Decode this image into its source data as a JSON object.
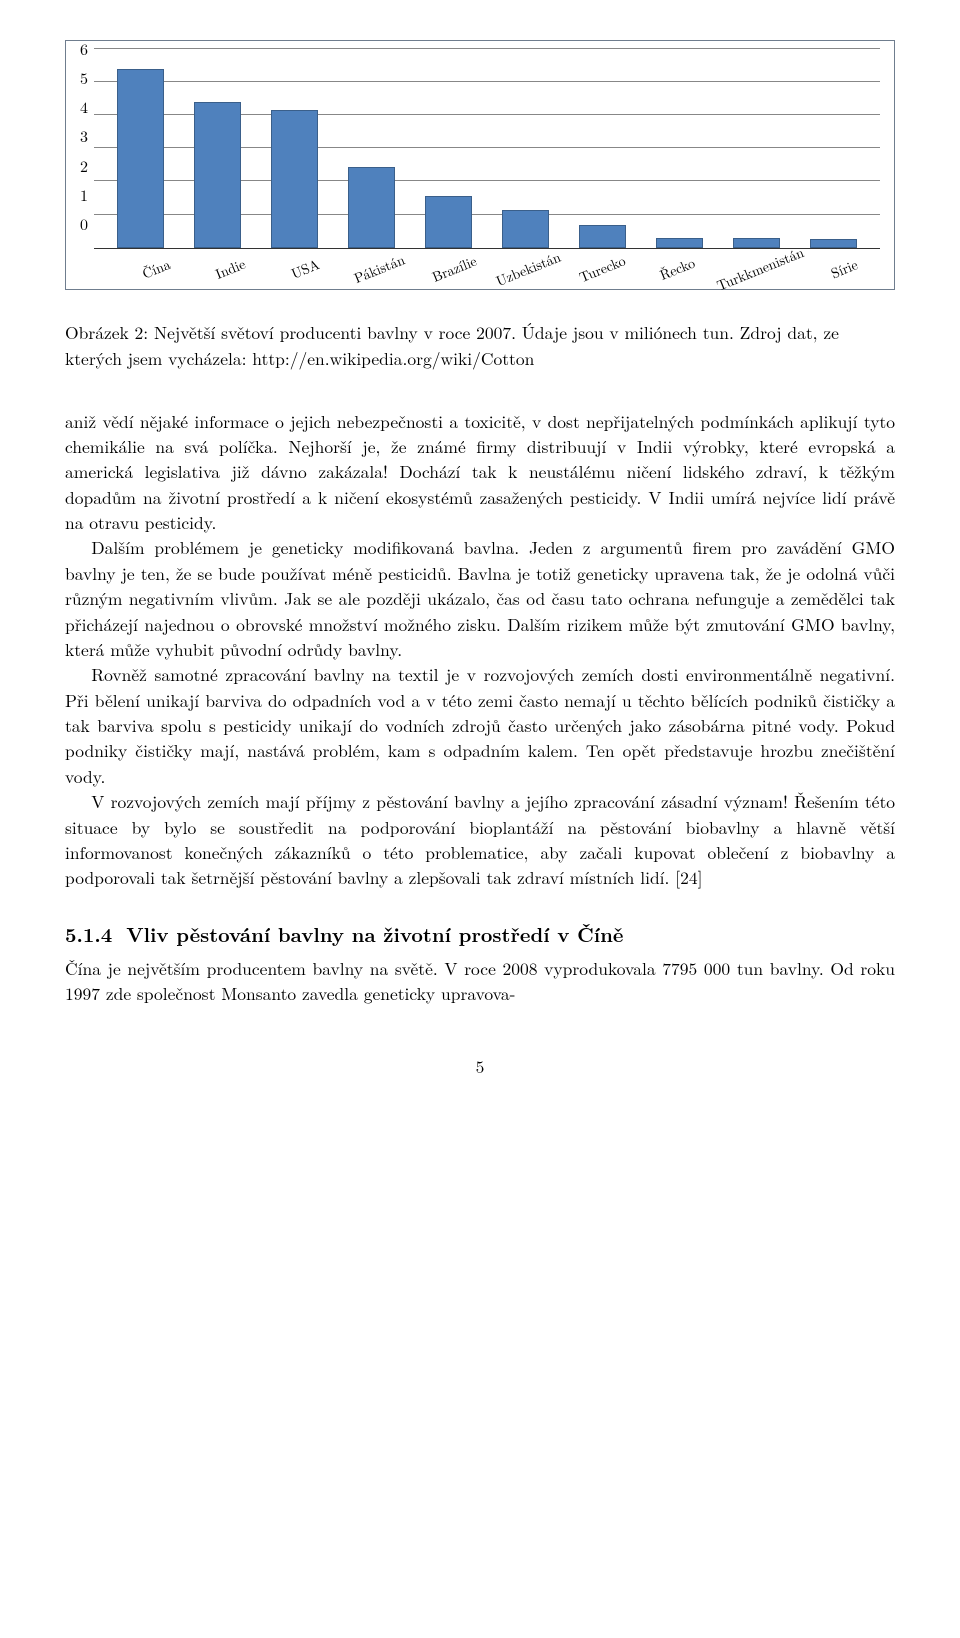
{
  "chart": {
    "type": "bar",
    "categories": [
      "Čína",
      "Indie",
      "USA",
      "Pákistán",
      "Brazílie",
      "Uzbekistán",
      "Turecko",
      "Řecko",
      "Turkkmenistán",
      "Sírie"
    ],
    "values": [
      5.4,
      4.4,
      4.15,
      2.45,
      1.55,
      1.15,
      0.7,
      0.3,
      0.3,
      0.25
    ],
    "bar_color": "#4f81bd",
    "bar_border": "#3a5f8a",
    "ylim": [
      0,
      6
    ],
    "ytick_step": 1,
    "yticks": [
      "0",
      "1",
      "2",
      "3",
      "4",
      "5",
      "6"
    ],
    "grid_color": "#878787",
    "container_border": "#6f7d8e",
    "background_color": "#ffffff",
    "label_fontsize": 14,
    "tick_fontsize": 16,
    "bar_width_rel": 0.6,
    "x_label_rotation_deg": -22
  },
  "caption": {
    "prefix": "Obrázek 2: ",
    "text": "Největší světoví producenti bavlny v roce 2007. Údaje jsou v miliónech tun. Zdroj dat, ze kterých jsem vycházela: http://en.wikipedia.org/wiki/Cotton"
  },
  "paragraphs": {
    "p1": "aniž vědí nějaké informace o jejich nebezpečnosti a toxicitě, v dost nepřijatelných podmínkách aplikují tyto chemikálie na svá políčka. Nejhorší je, že známé firmy distribuují v Indii výrobky, které evropská a americká legislativa již dávno zakázala! Dochází tak k neustálému ničení lidského zdraví, k těžkým dopadům na životní prostředí a k ničení ekosystémů zasažených pesticidy. V Indii umírá nejvíce lidí právě na otravu pesticidy.",
    "p2": "Dalším problémem je geneticky modifikovaná bavlna. Jeden z argumentů firem pro zavádění GMO bavlny je ten, že se bude používat méně pesticidů. Bavlna je totiž geneticky upravena tak, že je odolná vůči různým negativním vlivům. Jak se ale později ukázalo, čas od času tato ochrana nefunguje a zemědělci tak přicházejí najednou o obrovské množství možného zisku. Dalším rizikem může být zmutování GMO bavlny, která může vyhubit původní odrůdy bavlny.",
    "p3": "Rovněž samotné zpracování bavlny na textil je v rozvojových zemích dosti environmentálně negativní. Při bělení unikají barviva do odpadních vod a v této zemi často nemají u těchto bělících podniků čističky a tak barviva spolu s pesticidy unikají do vodních zdrojů často určených jako zásobárna pitné vody. Pokud podniky čističky mají, nastává problém, kam s odpadním kalem. Ten opět představuje hrozbu znečištění vody.",
    "p4": "V rozvojových zemích mají příjmy z pěstování bavlny a jejího zpracování zásadní význam! Řešením této situace by bylo se soustředit na podporování bioplantáží na pěstování biobavlny a hlavně větší informovanost konečných zákazníků o této problematice, aby začali kupovat oblečení z biobavlny a podporovali tak šetrnější pěstování bavlny a zlepšovali tak zdraví místních lidí. [24]"
  },
  "subsection": {
    "number": "5.1.4",
    "title": "Vliv pěstování bavlny na životní prostředí v Číně"
  },
  "paragraphs2": {
    "p5": "Čína je největším producentem bavlny na světě. V roce 2008 vyprodukovala 7795 000 tun bavlny. Od roku 1997 zde společnost Monsanto zavedla geneticky upravova-"
  },
  "page_number": "5"
}
